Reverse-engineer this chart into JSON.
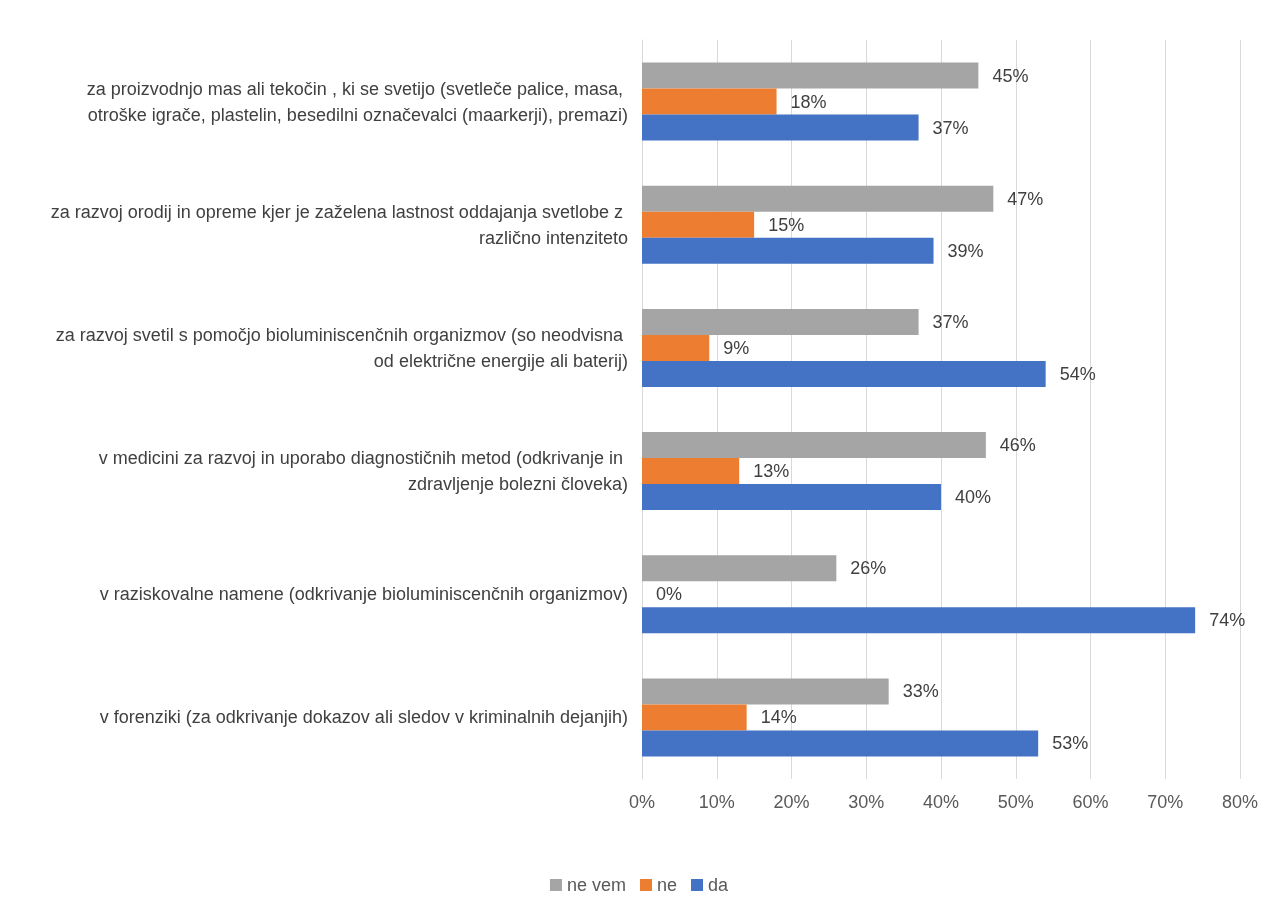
{
  "chart_data": {
    "type": "bar",
    "orientation": "horizontal",
    "categories": [
      "za proizvodnjo mas ali tekočin , ki se svetijo (svetleče palice, masa, otroške igrače, plastelin, besedilni označevalci (maarkerji), premazi)",
      "za razvoj orodij in opreme kjer je zaželena lastnost oddajanja svetlobe z različno intenziteto",
      "za razvoj svetil s pomočjo bioluminiscenčnih organizmov (so neodvisna od električne energije ali baterij)",
      "v medicini za razvoj in uporabo diagnostičnih metod (odkrivanje in zdravljenje bolezni človeka)",
      "v raziskovalne namene (odkrivanje bioluminiscenčnih organizmov)",
      "v forenziki (za odkrivanje dokazov ali sledov v kriminalnih dejanjih)"
    ],
    "series": [
      {
        "name": "ne vem",
        "color": "#a5a5a5",
        "values": [
          45,
          47,
          37,
          46,
          26,
          33
        ],
        "value_labels": [
          "45%",
          "47%",
          "37%",
          "46%",
          "26%",
          "33%"
        ]
      },
      {
        "name": "ne",
        "color": "#ed7d31",
        "values": [
          18,
          15,
          9,
          13,
          0,
          14
        ],
        "value_labels": [
          "18%",
          "15%",
          "9%",
          "13%",
          "0%",
          "14%"
        ]
      },
      {
        "name": "da",
        "color": "#4472c4",
        "values": [
          37,
          39,
          54,
          40,
          74,
          53
        ],
        "value_labels": [
          "37%",
          "39%",
          "54%",
          "40%",
          "74%",
          "53%"
        ]
      }
    ],
    "xlim": [
      0,
      80
    ],
    "xticks": [
      {
        "value": 0,
        "label": "0%"
      },
      {
        "value": 10,
        "label": "10%"
      },
      {
        "value": 20,
        "label": "20%"
      },
      {
        "value": 30,
        "label": "30%"
      },
      {
        "value": 40,
        "label": "40%"
      },
      {
        "value": 50,
        "label": "50%"
      },
      {
        "value": 60,
        "label": "60%"
      },
      {
        "value": 70,
        "label": "70%"
      },
      {
        "value": 80,
        "label": "80%"
      }
    ],
    "grid": "x",
    "legend": "bottom"
  }
}
